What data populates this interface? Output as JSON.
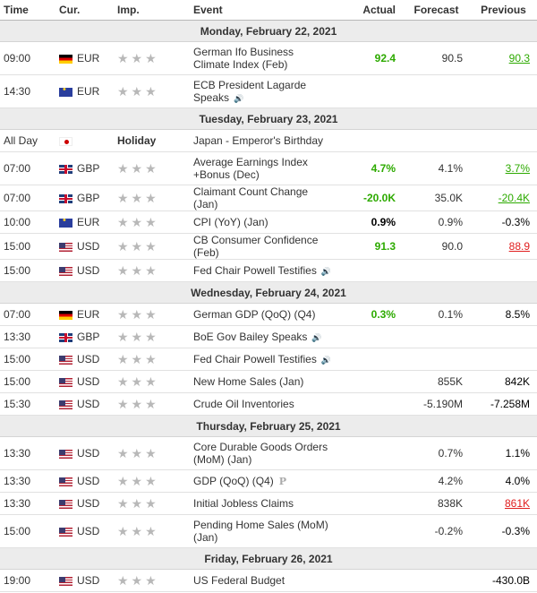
{
  "headers": {
    "time": "Time",
    "cur": "Cur.",
    "imp": "Imp.",
    "event": "Event",
    "actual": "Actual",
    "forecast": "Forecast",
    "previous": "Previous"
  },
  "days": [
    {
      "date": "Monday, February 22, 2021",
      "rows": [
        {
          "time": "09:00",
          "flag": "de",
          "cur": "EUR",
          "event": "German Ifo Business Climate Index (Feb)",
          "tall": true,
          "actual": "92.4",
          "actual_style": "green",
          "forecast": "90.5",
          "previous": "90.3",
          "previous_style": "green-u"
        },
        {
          "time": "14:30",
          "flag": "eu",
          "cur": "EUR",
          "event": "ECB President Lagarde Speaks",
          "speaker": true,
          "tall": true,
          "actual": "",
          "forecast": "",
          "previous": ""
        }
      ]
    },
    {
      "date": "Tuesday, February 23, 2021",
      "rows": [
        {
          "time": "All Day",
          "flag": "jp",
          "cur": "",
          "holiday": "Holiday",
          "event": "Japan - Emperor's Birthday",
          "actual": "",
          "forecast": "",
          "previous": ""
        },
        {
          "time": "07:00",
          "flag": "gb",
          "cur": "GBP",
          "event": "Average Earnings Index +Bonus (Dec)",
          "tall": true,
          "actual": "4.7%",
          "actual_style": "green",
          "forecast": "4.1%",
          "previous": "3.7%",
          "previous_style": "green-u"
        },
        {
          "time": "07:00",
          "flag": "gb",
          "cur": "GBP",
          "event": "Claimant Count Change (Jan)",
          "actual": "-20.0K",
          "actual_style": "green",
          "forecast": "35.0K",
          "previous": "-20.4K",
          "previous_style": "green-u"
        },
        {
          "time": "10:00",
          "flag": "eu",
          "cur": "EUR",
          "event": "CPI (YoY) (Jan)",
          "actual": "0.9%",
          "actual_style": "black-b",
          "forecast": "0.9%",
          "previous": "-0.3%",
          "previous_style": "black"
        },
        {
          "time": "15:00",
          "flag": "us",
          "cur": "USD",
          "event": "CB Consumer Confidence (Feb)",
          "actual": "91.3",
          "actual_style": "green",
          "forecast": "90.0",
          "previous": "88.9",
          "previous_style": "red-u"
        },
        {
          "time": "15:00",
          "flag": "us",
          "cur": "USD",
          "event": "Fed Chair Powell Testifies",
          "speaker": true,
          "actual": "",
          "forecast": "",
          "previous": ""
        }
      ]
    },
    {
      "date": "Wednesday, February 24, 2021",
      "rows": [
        {
          "time": "07:00",
          "flag": "de",
          "cur": "EUR",
          "event": "German GDP (QoQ) (Q4)",
          "actual": "0.3%",
          "actual_style": "green",
          "forecast": "0.1%",
          "previous": "8.5%",
          "previous_style": "black"
        },
        {
          "time": "13:30",
          "flag": "gb",
          "cur": "GBP",
          "event": "BoE Gov Bailey Speaks",
          "speaker": true,
          "actual": "",
          "forecast": "",
          "previous": ""
        },
        {
          "time": "15:00",
          "flag": "us",
          "cur": "USD",
          "event": "Fed Chair Powell Testifies",
          "speaker": true,
          "actual": "",
          "forecast": "",
          "previous": ""
        },
        {
          "time": "15:00",
          "flag": "us",
          "cur": "USD",
          "event": "New Home Sales (Jan)",
          "actual": "",
          "forecast": "855K",
          "previous": "842K",
          "previous_style": "black"
        },
        {
          "time": "15:30",
          "flag": "us",
          "cur": "USD",
          "event": "Crude Oil Inventories",
          "actual": "",
          "forecast": "-5.190M",
          "previous": "-7.258M",
          "previous_style": "black"
        }
      ]
    },
    {
      "date": "Thursday, February 25, 2021",
      "rows": [
        {
          "time": "13:30",
          "flag": "us",
          "cur": "USD",
          "event": "Core Durable Goods Orders (MoM) (Jan)",
          "tall": true,
          "actual": "",
          "forecast": "0.7%",
          "previous": "1.1%",
          "previous_style": "black"
        },
        {
          "time": "13:30",
          "flag": "us",
          "cur": "USD",
          "event": "GDP (QoQ) (Q4)",
          "prelim": "P",
          "actual": "",
          "forecast": "4.2%",
          "previous": "4.0%",
          "previous_style": "black"
        },
        {
          "time": "13:30",
          "flag": "us",
          "cur": "USD",
          "event": "Initial Jobless Claims",
          "actual": "",
          "forecast": "838K",
          "previous": "861K",
          "previous_style": "red-u"
        },
        {
          "time": "15:00",
          "flag": "us",
          "cur": "USD",
          "event": "Pending Home Sales (MoM) (Jan)",
          "tall": true,
          "actual": "",
          "forecast": "-0.2%",
          "previous": "-0.3%",
          "previous_style": "black"
        }
      ]
    },
    {
      "date": "Friday, February 26, 2021",
      "rows": [
        {
          "time": "19:00",
          "flag": "us",
          "cur": "USD",
          "event": "US Federal Budget",
          "actual": "",
          "forecast": "",
          "previous": "-430.0B",
          "previous_style": "black"
        }
      ]
    }
  ]
}
